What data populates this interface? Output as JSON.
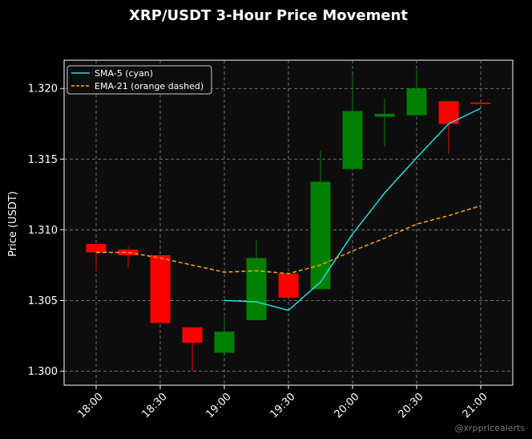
{
  "chart_data": {
    "type": "candlestick",
    "title": "XRP/USDT 3-Hour Price Movement",
    "xlabel": "",
    "ylabel": "Price (USDT)",
    "x_ticks": [
      "18:00",
      "18:30",
      "19:00",
      "19:30",
      "20:00",
      "20:30",
      "21:00"
    ],
    "y_ticks": [
      "1.300",
      "1.305",
      "1.310",
      "1.315",
      "1.320"
    ],
    "x_range": [
      "17:45",
      "21:15"
    ],
    "ylim": [
      1.299,
      1.322
    ],
    "grid": true,
    "legend_position": "top-left",
    "up_color": "#008000",
    "down_color": "#ff0000",
    "background": "#0d0d0d",
    "candles": [
      {
        "time": "18:00",
        "open": 1.309,
        "high": 1.309,
        "low": 1.3071,
        "close": 1.3084
      },
      {
        "time": "18:15",
        "open": 1.3086,
        "high": 1.3088,
        "low": 1.3073,
        "close": 1.3082
      },
      {
        "time": "18:30",
        "open": 1.3082,
        "high": 1.3082,
        "low": 1.3034,
        "close": 1.3034
      },
      {
        "time": "18:45",
        "open": 1.3031,
        "high": 1.3031,
        "low": 1.3,
        "close": 1.302
      },
      {
        "time": "19:00",
        "open": 1.3013,
        "high": 1.304,
        "low": 1.3013,
        "close": 1.3028
      },
      {
        "time": "19:15",
        "open": 1.3036,
        "high": 1.3093,
        "low": 1.3036,
        "close": 1.308
      },
      {
        "time": "19:30",
        "open": 1.3069,
        "high": 1.3069,
        "low": 1.3052,
        "close": 1.3052
      },
      {
        "time": "19:45",
        "open": 1.3058,
        "high": 1.3156,
        "low": 1.3058,
        "close": 1.3134
      },
      {
        "time": "20:00",
        "open": 1.3143,
        "high": 1.321,
        "low": 1.3143,
        "close": 1.3184
      },
      {
        "time": "20:15",
        "open": 1.318,
        "high": 1.3193,
        "low": 1.3159,
        "close": 1.3182
      },
      {
        "time": "20:30",
        "open": 1.3181,
        "high": 1.3213,
        "low": 1.3181,
        "close": 1.32
      },
      {
        "time": "20:45",
        "open": 1.3191,
        "high": 1.3191,
        "low": 1.3154,
        "close": 1.3175
      },
      {
        "time": "21:00",
        "open": 1.319,
        "high": 1.319,
        "low": 1.3189,
        "close": 1.3189
      }
    ],
    "series": [
      {
        "name": "SMA-5 (cyan)",
        "style": "solid",
        "color": "#22dddd",
        "points": [
          {
            "time": "19:00",
            "value": 1.305
          },
          {
            "time": "19:15",
            "value": 1.3049
          },
          {
            "time": "19:30",
            "value": 1.3043
          },
          {
            "time": "19:45",
            "value": 1.3063
          },
          {
            "time": "20:00",
            "value": 1.3097
          },
          {
            "time": "20:15",
            "value": 1.3126
          },
          {
            "time": "20:30",
            "value": 1.3151
          },
          {
            "time": "20:45",
            "value": 1.3175
          },
          {
            "time": "21:00",
            "value": 1.3186
          }
        ]
      },
      {
        "name": "EMA-21 (orange dashed)",
        "style": "dashed",
        "color": "#ffa500",
        "points": [
          {
            "time": "18:00",
            "value": 1.3084
          },
          {
            "time": "18:15",
            "value": 1.3084
          },
          {
            "time": "18:30",
            "value": 1.308
          },
          {
            "time": "18:45",
            "value": 1.3075
          },
          {
            "time": "19:00",
            "value": 1.307
          },
          {
            "time": "19:15",
            "value": 1.3071
          },
          {
            "time": "19:30",
            "value": 1.3069
          },
          {
            "time": "19:45",
            "value": 1.3075
          },
          {
            "time": "20:00",
            "value": 1.3085
          },
          {
            "time": "20:15",
            "value": 1.3094
          },
          {
            "time": "20:30",
            "value": 1.3104
          },
          {
            "time": "20:45",
            "value": 1.311
          },
          {
            "time": "21:00",
            "value": 1.3117
          }
        ]
      }
    ],
    "watermark": "@xrppricealerts"
  }
}
